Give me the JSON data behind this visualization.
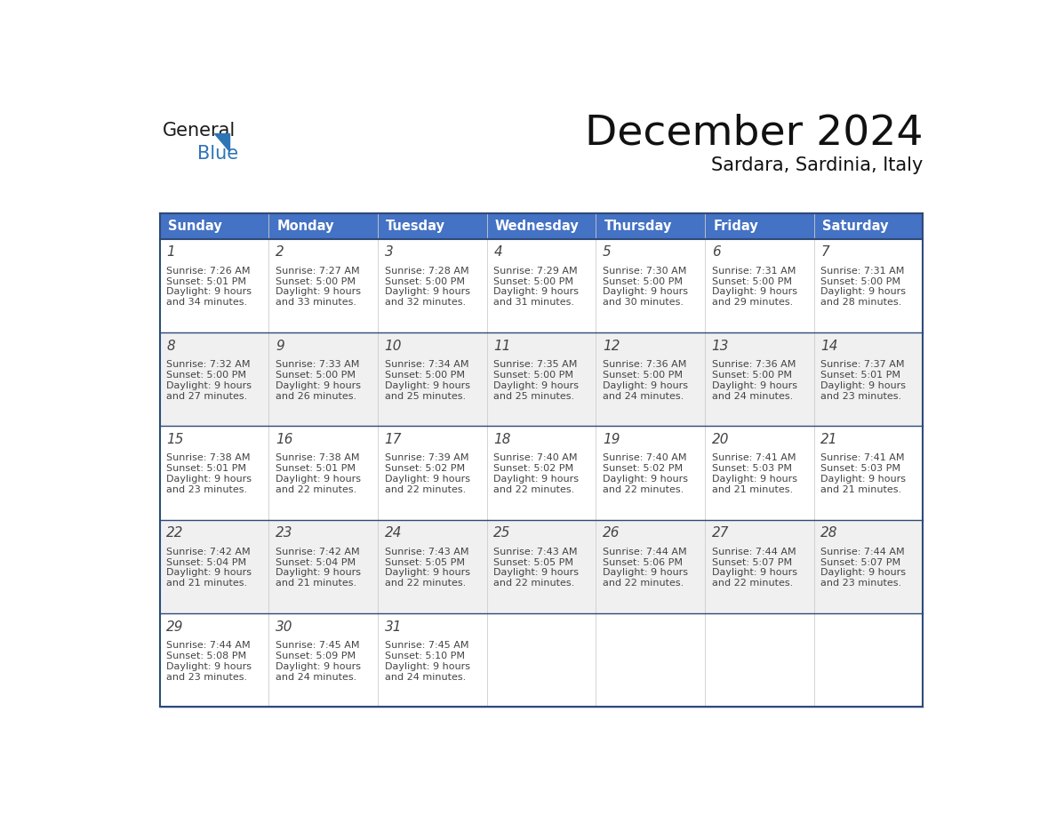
{
  "title": "December 2024",
  "subtitle": "Sardara, Sardinia, Italy",
  "header_color": "#4472C4",
  "header_text_color": "#FFFFFF",
  "cell_bg_white": "#FFFFFF",
  "cell_bg_gray": "#F0F0F0",
  "day_headers": [
    "Sunday",
    "Monday",
    "Tuesday",
    "Wednesday",
    "Thursday",
    "Friday",
    "Saturday"
  ],
  "days": [
    {
      "day": 1,
      "col": 0,
      "row": 0,
      "sunrise": "7:26 AM",
      "sunset": "5:01 PM",
      "daylight_hours": 9,
      "daylight_minutes": 34
    },
    {
      "day": 2,
      "col": 1,
      "row": 0,
      "sunrise": "7:27 AM",
      "sunset": "5:00 PM",
      "daylight_hours": 9,
      "daylight_minutes": 33
    },
    {
      "day": 3,
      "col": 2,
      "row": 0,
      "sunrise": "7:28 AM",
      "sunset": "5:00 PM",
      "daylight_hours": 9,
      "daylight_minutes": 32
    },
    {
      "day": 4,
      "col": 3,
      "row": 0,
      "sunrise": "7:29 AM",
      "sunset": "5:00 PM",
      "daylight_hours": 9,
      "daylight_minutes": 31
    },
    {
      "day": 5,
      "col": 4,
      "row": 0,
      "sunrise": "7:30 AM",
      "sunset": "5:00 PM",
      "daylight_hours": 9,
      "daylight_minutes": 30
    },
    {
      "day": 6,
      "col": 5,
      "row": 0,
      "sunrise": "7:31 AM",
      "sunset": "5:00 PM",
      "daylight_hours": 9,
      "daylight_minutes": 29
    },
    {
      "day": 7,
      "col": 6,
      "row": 0,
      "sunrise": "7:31 AM",
      "sunset": "5:00 PM",
      "daylight_hours": 9,
      "daylight_minutes": 28
    },
    {
      "day": 8,
      "col": 0,
      "row": 1,
      "sunrise": "7:32 AM",
      "sunset": "5:00 PM",
      "daylight_hours": 9,
      "daylight_minutes": 27
    },
    {
      "day": 9,
      "col": 1,
      "row": 1,
      "sunrise": "7:33 AM",
      "sunset": "5:00 PM",
      "daylight_hours": 9,
      "daylight_minutes": 26
    },
    {
      "day": 10,
      "col": 2,
      "row": 1,
      "sunrise": "7:34 AM",
      "sunset": "5:00 PM",
      "daylight_hours": 9,
      "daylight_minutes": 25
    },
    {
      "day": 11,
      "col": 3,
      "row": 1,
      "sunrise": "7:35 AM",
      "sunset": "5:00 PM",
      "daylight_hours": 9,
      "daylight_minutes": 25
    },
    {
      "day": 12,
      "col": 4,
      "row": 1,
      "sunrise": "7:36 AM",
      "sunset": "5:00 PM",
      "daylight_hours": 9,
      "daylight_minutes": 24
    },
    {
      "day": 13,
      "col": 5,
      "row": 1,
      "sunrise": "7:36 AM",
      "sunset": "5:00 PM",
      "daylight_hours": 9,
      "daylight_minutes": 24
    },
    {
      "day": 14,
      "col": 6,
      "row": 1,
      "sunrise": "7:37 AM",
      "sunset": "5:01 PM",
      "daylight_hours": 9,
      "daylight_minutes": 23
    },
    {
      "day": 15,
      "col": 0,
      "row": 2,
      "sunrise": "7:38 AM",
      "sunset": "5:01 PM",
      "daylight_hours": 9,
      "daylight_minutes": 23
    },
    {
      "day": 16,
      "col": 1,
      "row": 2,
      "sunrise": "7:38 AM",
      "sunset": "5:01 PM",
      "daylight_hours": 9,
      "daylight_minutes": 22
    },
    {
      "day": 17,
      "col": 2,
      "row": 2,
      "sunrise": "7:39 AM",
      "sunset": "5:02 PM",
      "daylight_hours": 9,
      "daylight_minutes": 22
    },
    {
      "day": 18,
      "col": 3,
      "row": 2,
      "sunrise": "7:40 AM",
      "sunset": "5:02 PM",
      "daylight_hours": 9,
      "daylight_minutes": 22
    },
    {
      "day": 19,
      "col": 4,
      "row": 2,
      "sunrise": "7:40 AM",
      "sunset": "5:02 PM",
      "daylight_hours": 9,
      "daylight_minutes": 22
    },
    {
      "day": 20,
      "col": 5,
      "row": 2,
      "sunrise": "7:41 AM",
      "sunset": "5:03 PM",
      "daylight_hours": 9,
      "daylight_minutes": 21
    },
    {
      "day": 21,
      "col": 6,
      "row": 2,
      "sunrise": "7:41 AM",
      "sunset": "5:03 PM",
      "daylight_hours": 9,
      "daylight_minutes": 21
    },
    {
      "day": 22,
      "col": 0,
      "row": 3,
      "sunrise": "7:42 AM",
      "sunset": "5:04 PM",
      "daylight_hours": 9,
      "daylight_minutes": 21
    },
    {
      "day": 23,
      "col": 1,
      "row": 3,
      "sunrise": "7:42 AM",
      "sunset": "5:04 PM",
      "daylight_hours": 9,
      "daylight_minutes": 21
    },
    {
      "day": 24,
      "col": 2,
      "row": 3,
      "sunrise": "7:43 AM",
      "sunset": "5:05 PM",
      "daylight_hours": 9,
      "daylight_minutes": 22
    },
    {
      "day": 25,
      "col": 3,
      "row": 3,
      "sunrise": "7:43 AM",
      "sunset": "5:05 PM",
      "daylight_hours": 9,
      "daylight_minutes": 22
    },
    {
      "day": 26,
      "col": 4,
      "row": 3,
      "sunrise": "7:44 AM",
      "sunset": "5:06 PM",
      "daylight_hours": 9,
      "daylight_minutes": 22
    },
    {
      "day": 27,
      "col": 5,
      "row": 3,
      "sunrise": "7:44 AM",
      "sunset": "5:07 PM",
      "daylight_hours": 9,
      "daylight_minutes": 22
    },
    {
      "day": 28,
      "col": 6,
      "row": 3,
      "sunrise": "7:44 AM",
      "sunset": "5:07 PM",
      "daylight_hours": 9,
      "daylight_minutes": 23
    },
    {
      "day": 29,
      "col": 0,
      "row": 4,
      "sunrise": "7:44 AM",
      "sunset": "5:08 PM",
      "daylight_hours": 9,
      "daylight_minutes": 23
    },
    {
      "day": 30,
      "col": 1,
      "row": 4,
      "sunrise": "7:45 AM",
      "sunset": "5:09 PM",
      "daylight_hours": 9,
      "daylight_minutes": 24
    },
    {
      "day": 31,
      "col": 2,
      "row": 4,
      "sunrise": "7:45 AM",
      "sunset": "5:10 PM",
      "daylight_hours": 9,
      "daylight_minutes": 24
    }
  ],
  "num_rows": 5,
  "row_line_color": "#2E4A7A",
  "col_line_color": "#CCCCCC",
  "outer_line_color": "#2E4A7A",
  "text_color": "#444444",
  "logo_general_color": "#1a1a1a",
  "logo_blue_color": "#2E75B6",
  "logo_triangle_color": "#2E75B6"
}
